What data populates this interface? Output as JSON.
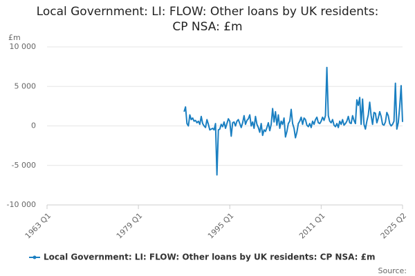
{
  "chart_data": {
    "type": "line",
    "title": "Local Government: LI: FLOW: Other loans by UK residents: CP NSA: £m",
    "y_label": "£m",
    "source": "Source:",
    "xlim": [
      "1963 Q1",
      "2025 Q2"
    ],
    "xticks": [
      "1963 Q1",
      "1979 Q1",
      "1995 Q1",
      "2011 Q1",
      "2025 Q2"
    ],
    "ylim": [
      -10000,
      10000
    ],
    "yticks": [
      {
        "value": 10000,
        "label": "10 000"
      },
      {
        "value": 5000,
        "label": "5 000"
      },
      0,
      {
        "value": -5000,
        "label": "-5 000"
      },
      {
        "value": -10000,
        "label": "-10 000"
      }
    ],
    "grid": true,
    "legend": "bottom",
    "x": [
      "1987 Q1",
      "1987 Q2",
      "1987 Q3",
      "1987 Q4",
      "1988 Q1",
      "1988 Q2",
      "1988 Q3",
      "1988 Q4",
      "1989 Q1",
      "1989 Q2",
      "1989 Q3",
      "1989 Q4",
      "1990 Q1",
      "1990 Q2",
      "1990 Q3",
      "1990 Q4",
      "1991 Q1",
      "1991 Q2",
      "1991 Q3",
      "1991 Q4",
      "1992 Q1",
      "1992 Q2",
      "1992 Q3",
      "1992 Q4",
      "1993 Q1",
      "1993 Q2",
      "1993 Q3",
      "1993 Q4",
      "1994 Q1",
      "1994 Q2",
      "1994 Q3",
      "1994 Q4",
      "1995 Q1",
      "1995 Q2",
      "1995 Q3",
      "1995 Q4",
      "1996 Q1",
      "1996 Q2",
      "1996 Q3",
      "1996 Q4",
      "1997 Q1",
      "1997 Q2",
      "1997 Q3",
      "1997 Q4",
      "1998 Q1",
      "1998 Q2",
      "1998 Q3",
      "1998 Q4",
      "1999 Q1",
      "1999 Q2",
      "1999 Q3",
      "1999 Q4",
      "2000 Q1",
      "2000 Q2",
      "2000 Q3",
      "2000 Q4",
      "2001 Q1",
      "2001 Q2",
      "2001 Q3",
      "2001 Q4",
      "2002 Q1",
      "2002 Q2",
      "2002 Q3",
      "2002 Q4",
      "2003 Q1",
      "2003 Q2",
      "2003 Q3",
      "2003 Q4",
      "2004 Q1",
      "2004 Q2",
      "2004 Q3",
      "2004 Q4",
      "2005 Q1",
      "2005 Q2",
      "2005 Q3",
      "2005 Q4",
      "2006 Q1",
      "2006 Q2",
      "2006 Q3",
      "2006 Q4",
      "2007 Q1",
      "2007 Q2",
      "2007 Q3",
      "2007 Q4",
      "2008 Q1",
      "2008 Q2",
      "2008 Q3",
      "2008 Q4",
      "2009 Q1",
      "2009 Q2",
      "2009 Q3",
      "2009 Q4",
      "2010 Q1",
      "2010 Q2",
      "2010 Q3",
      "2010 Q4",
      "2011 Q1",
      "2011 Q2",
      "2011 Q3",
      "2011 Q4",
      "2012 Q1",
      "2012 Q2",
      "2012 Q3",
      "2012 Q4",
      "2013 Q1",
      "2013 Q2",
      "2013 Q3",
      "2013 Q4",
      "2014 Q1",
      "2014 Q2",
      "2014 Q3",
      "2014 Q4",
      "2015 Q1",
      "2015 Q2",
      "2015 Q3",
      "2015 Q4",
      "2016 Q1",
      "2016 Q2",
      "2016 Q3",
      "2016 Q4",
      "2017 Q1",
      "2017 Q2",
      "2017 Q3",
      "2017 Q4",
      "2018 Q1",
      "2018 Q2",
      "2018 Q3",
      "2018 Q4",
      "2019 Q1",
      "2019 Q2",
      "2019 Q3",
      "2019 Q4",
      "2020 Q1",
      "2020 Q2",
      "2020 Q3",
      "2020 Q4",
      "2021 Q1",
      "2021 Q2",
      "2021 Q3",
      "2021 Q4",
      "2022 Q1",
      "2022 Q2",
      "2022 Q3",
      "2022 Q4",
      "2023 Q1",
      "2023 Q2",
      "2023 Q3",
      "2023 Q4",
      "2024 Q1",
      "2024 Q2",
      "2024 Q3",
      "2024 Q4",
      "2025 Q1",
      "2025 Q2"
    ],
    "series": [
      {
        "name": "Local Government: LI: FLOW: Other loans by UK residents: CP NSA: £m",
        "color": "#1a7fc1",
        "values": [
          1800,
          2400,
          300,
          0,
          1400,
          800,
          1000,
          600,
          700,
          400,
          600,
          200,
          1200,
          300,
          0,
          -200,
          800,
          200,
          -500,
          -400,
          -300,
          -500,
          300,
          -6200,
          -500,
          -400,
          200,
          -100,
          500,
          -300,
          300,
          900,
          600,
          -1300,
          400,
          500,
          0,
          600,
          800,
          300,
          -200,
          400,
          1300,
          200,
          700,
          900,
          1400,
          0,
          500,
          -300,
          1200,
          200,
          -200,
          -800,
          300,
          -1200,
          -500,
          -700,
          -200,
          400,
          -600,
          200,
          2200,
          500,
          1800,
          100,
          1400,
          -300,
          600,
          200,
          1000,
          -1400,
          -700,
          300,
          600,
          2100,
          300,
          -300,
          -1500,
          -800,
          300,
          600,
          1100,
          200,
          1000,
          800,
          100,
          -100,
          300,
          -200,
          600,
          200,
          800,
          1100,
          400,
          300,
          600,
          1100,
          700,
          1300,
          7400,
          1300,
          600,
          400,
          800,
          100,
          -100,
          300,
          -200,
          600,
          200,
          800,
          100,
          300,
          600,
          1200,
          400,
          300,
          1300,
          700,
          300,
          3300,
          2600,
          3600,
          200,
          3400,
          200,
          -400,
          600,
          1400,
          3000,
          1300,
          200,
          1700,
          1600,
          400,
          1000,
          1800,
          1200,
          200,
          100,
          500,
          1700,
          1300,
          300,
          0,
          200,
          600,
          5400,
          -400,
          400,
          2400,
          5100,
          500
        ]
      }
    ]
  }
}
